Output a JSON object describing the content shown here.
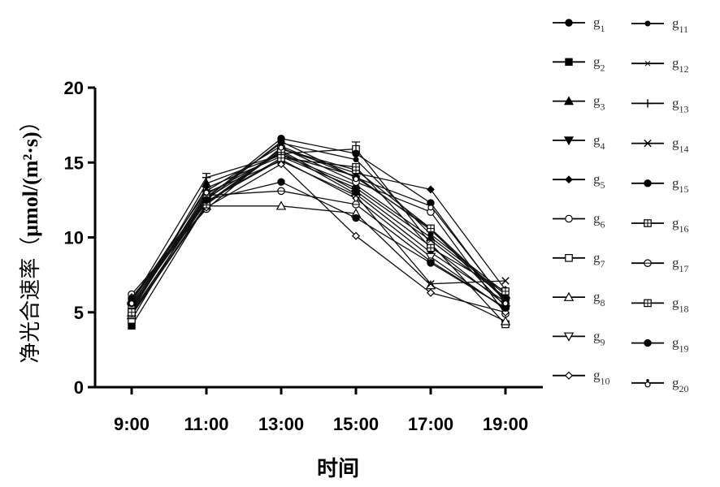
{
  "chart_data": {
    "type": "line",
    "xlabel": "时间",
    "ylabel": "净光合速率（μmol/(m²·s)）",
    "ylabel_cjk": "净光合速率（",
    "ylabel_unit": "μmol/(m²·s)",
    "ylabel_close": "）",
    "categories": [
      "9:00",
      "11:00",
      "13:00",
      "15:00",
      "17:00",
      "19:00"
    ],
    "ylim": [
      0,
      20
    ],
    "yticks": [
      0,
      5,
      10,
      15,
      20
    ],
    "grid": false,
    "legend_position": "right",
    "series": [
      {
        "name": "g1",
        "label": "g",
        "sub": "1",
        "marker": "circle-filled",
        "values": [
          5.6,
          12.5,
          16.4,
          14.0,
          10.6,
          5.9
        ]
      },
      {
        "name": "g2",
        "label": "g",
        "sub": "2",
        "marker": "square-filled",
        "values": [
          4.1,
          12.2,
          15.8,
          13.1,
          9.4,
          5.5
        ]
      },
      {
        "name": "g3",
        "label": "g",
        "sub": "3",
        "marker": "triangle-filled",
        "values": [
          5.0,
          13.6,
          15.5,
          13.5,
          10.0,
          6.2
        ]
      },
      {
        "name": "g4",
        "label": "g",
        "sub": "4",
        "marker": "triangle-down",
        "values": [
          5.3,
          12.6,
          15.7,
          12.9,
          9.0,
          5.7
        ]
      },
      {
        "name": "g5",
        "label": "g",
        "sub": "5",
        "marker": "diamond-filled",
        "values": [
          5.8,
          12.3,
          15.9,
          14.3,
          13.2,
          6.5
        ]
      },
      {
        "name": "g6",
        "label": "g",
        "sub": "6",
        "marker": "circle-open",
        "values": [
          6.2,
          11.9,
          16.0,
          13.7,
          11.7,
          4.9
        ]
      },
      {
        "name": "g7",
        "label": "g",
        "sub": "7",
        "marker": "square-open",
        "values": [
          4.5,
          12.9,
          15.6,
          15.9,
          9.6,
          4.2
        ]
      },
      {
        "name": "g8",
        "label": "g",
        "sub": "8",
        "marker": "triangle-open",
        "values": [
          4.8,
          12.1,
          12.1,
          11.6,
          6.8,
          4.4
        ]
      },
      {
        "name": "g9",
        "label": "g",
        "sub": "9",
        "marker": "triangle-down-open",
        "values": [
          5.4,
          12.4,
          15.2,
          12.6,
          8.7,
          5.2
        ]
      },
      {
        "name": "g10",
        "label": "g",
        "sub": "10",
        "marker": "diamond-open",
        "values": [
          6.0,
          12.0,
          14.9,
          10.1,
          6.3,
          5.0
        ]
      },
      {
        "name": "g11",
        "label": "g",
        "sub": "11",
        "marker": "small-dot",
        "values": [
          5.5,
          12.7,
          16.3,
          15.2,
          10.2,
          6.3
        ]
      },
      {
        "name": "g12",
        "label": "g",
        "sub": "12",
        "marker": "star",
        "values": [
          5.2,
          13.3,
          15.4,
          13.3,
          9.8,
          6.0
        ]
      },
      {
        "name": "g13",
        "label": "g",
        "sub": "13",
        "marker": "plus",
        "values": [
          5.7,
          14.0,
          15.5,
          14.1,
          10.5,
          5.8
        ]
      },
      {
        "name": "g14",
        "label": "g",
        "sub": "14",
        "marker": "cross",
        "values": [
          5.1,
          13.0,
          15.1,
          12.8,
          6.9,
          7.1
        ]
      },
      {
        "name": "g15",
        "label": "g",
        "sub": "15",
        "marker": "circle-filled",
        "values": [
          5.9,
          12.6,
          16.6,
          15.6,
          12.3,
          5.6
        ]
      },
      {
        "name": "g16",
        "label": "g",
        "sub": "16",
        "marker": "square-crossed",
        "values": [
          4.9,
          12.2,
          15.9,
          14.5,
          10.6,
          5.4
        ]
      },
      {
        "name": "g17",
        "label": "g",
        "sub": "17",
        "marker": "circle-crossed",
        "values": [
          5.3,
          12.8,
          13.1,
          12.2,
          8.4,
          5.3
        ]
      },
      {
        "name": "g18",
        "label": "g",
        "sub": "18",
        "marker": "square-crossed",
        "values": [
          5.0,
          12.4,
          15.3,
          14.7,
          9.3,
          6.4
        ]
      },
      {
        "name": "g19",
        "label": "g",
        "sub": "19",
        "marker": "circle-filled",
        "values": [
          5.6,
          12.5,
          13.7,
          11.3,
          8.3,
          5.3
        ]
      },
      {
        "name": "g20",
        "label": "g",
        "sub": "20",
        "marker": "dot-bar",
        "values": [
          5.7,
          13.1,
          16.1,
          14.0,
          12.1,
          5.7
        ]
      }
    ],
    "error_bars": [
      {
        "category": "11:00",
        "value": 14.0
      },
      {
        "category": "15:00",
        "value": 16.1
      }
    ]
  }
}
